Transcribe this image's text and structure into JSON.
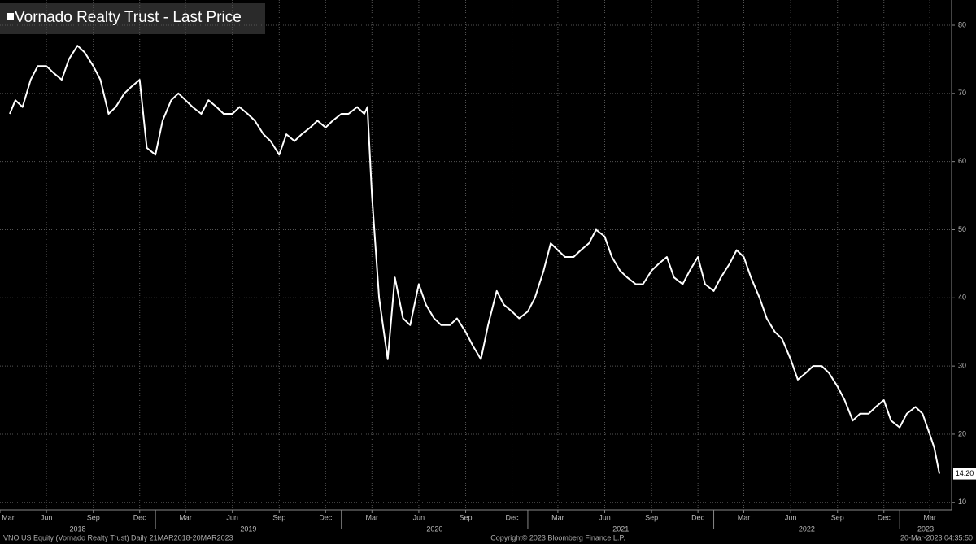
{
  "chart_data": {
    "type": "line",
    "title": "Vornado Realty Trust - Last Price",
    "xlim": [
      "2018-03-21",
      "2023-03-20"
    ],
    "ylim": [
      8.9,
      83.7
    ],
    "yticks": [
      10,
      20,
      30,
      40,
      50,
      60,
      70,
      80
    ],
    "xticks": [
      {
        "value": "2018-03-01",
        "label": "Mar"
      },
      {
        "value": "2018-06-01",
        "label": "Jun"
      },
      {
        "value": "2018-09-01",
        "label": "Sep"
      },
      {
        "value": "2018-12-01",
        "label": "Dec"
      },
      {
        "value": "2019-03-01",
        "label": "Mar"
      },
      {
        "value": "2019-06-01",
        "label": "Jun"
      },
      {
        "value": "2019-09-01",
        "label": "Sep"
      },
      {
        "value": "2019-12-01",
        "label": "Dec"
      },
      {
        "value": "2020-03-01",
        "label": "Mar"
      },
      {
        "value": "2020-06-01",
        "label": "Jun"
      },
      {
        "value": "2020-09-01",
        "label": "Sep"
      },
      {
        "value": "2020-12-01",
        "label": "Dec"
      },
      {
        "value": "2021-03-01",
        "label": "Mar"
      },
      {
        "value": "2021-06-01",
        "label": "Jun"
      },
      {
        "value": "2021-09-01",
        "label": "Sep"
      },
      {
        "value": "2021-12-01",
        "label": "Dec"
      },
      {
        "value": "2022-03-01",
        "label": "Mar"
      },
      {
        "value": "2022-06-01",
        "label": "Jun"
      },
      {
        "value": "2022-09-01",
        "label": "Sep"
      },
      {
        "value": "2022-12-01",
        "label": "Dec"
      },
      {
        "value": "2023-03-01",
        "label": "Mar"
      }
    ],
    "year_ticks": [
      2018,
      2019,
      2020,
      2021,
      2022,
      2023
    ],
    "grid": true,
    "series": [
      {
        "name": "Vornado Realty Trust - Last Price",
        "color": "#ffffff",
        "x": [
          "2018-03-21",
          "2018-04-01",
          "2018-04-15",
          "2018-05-01",
          "2018-05-15",
          "2018-06-01",
          "2018-06-15",
          "2018-07-01",
          "2018-07-15",
          "2018-08-01",
          "2018-08-15",
          "2018-09-01",
          "2018-09-15",
          "2018-10-01",
          "2018-10-15",
          "2018-11-01",
          "2018-11-15",
          "2018-12-01",
          "2018-12-15",
          "2019-01-01",
          "2019-01-15",
          "2019-02-01",
          "2019-02-15",
          "2019-03-01",
          "2019-03-15",
          "2019-04-01",
          "2019-04-15",
          "2019-05-01",
          "2019-05-15",
          "2019-06-01",
          "2019-06-15",
          "2019-07-01",
          "2019-07-15",
          "2019-08-01",
          "2019-08-15",
          "2019-09-01",
          "2019-09-15",
          "2019-10-01",
          "2019-10-15",
          "2019-11-01",
          "2019-11-15",
          "2019-12-01",
          "2019-12-15",
          "2020-01-01",
          "2020-01-15",
          "2020-02-01",
          "2020-02-15",
          "2020-02-21",
          "2020-03-01",
          "2020-03-15",
          "2020-04-01",
          "2020-04-15",
          "2020-05-01",
          "2020-05-15",
          "2020-06-01",
          "2020-06-15",
          "2020-07-01",
          "2020-07-15",
          "2020-08-01",
          "2020-08-15",
          "2020-09-01",
          "2020-09-15",
          "2020-10-01",
          "2020-10-15",
          "2020-11-01",
          "2020-11-15",
          "2020-12-01",
          "2020-12-15",
          "2021-01-01",
          "2021-01-15",
          "2021-02-01",
          "2021-02-15",
          "2021-03-01",
          "2021-03-15",
          "2021-04-01",
          "2021-04-15",
          "2021-05-01",
          "2021-05-15",
          "2021-06-01",
          "2021-06-15",
          "2021-07-01",
          "2021-07-15",
          "2021-08-01",
          "2021-08-15",
          "2021-09-01",
          "2021-09-15",
          "2021-10-01",
          "2021-10-15",
          "2021-11-01",
          "2021-11-15",
          "2021-12-01",
          "2021-12-15",
          "2022-01-01",
          "2022-01-15",
          "2022-02-01",
          "2022-02-15",
          "2022-03-01",
          "2022-03-15",
          "2022-04-01",
          "2022-04-15",
          "2022-05-01",
          "2022-05-15",
          "2022-06-01",
          "2022-06-15",
          "2022-07-01",
          "2022-07-15",
          "2022-08-01",
          "2022-08-15",
          "2022-09-01",
          "2022-09-15",
          "2022-10-01",
          "2022-10-15",
          "2022-11-01",
          "2022-11-15",
          "2022-12-01",
          "2022-12-15",
          "2023-01-01",
          "2023-01-15",
          "2023-02-01",
          "2023-02-15",
          "2023-03-01",
          "2023-03-10",
          "2023-03-20"
        ],
        "values": [
          67,
          69,
          68,
          72,
          74,
          74,
          73,
          72,
          75,
          77,
          76,
          74,
          72,
          67,
          68,
          70,
          71,
          72,
          62,
          61,
          66,
          69,
          70,
          69,
          68,
          67,
          69,
          68,
          67,
          67,
          68,
          67,
          66,
          64,
          63,
          61,
          64,
          63,
          64,
          65,
          66,
          65,
          66,
          67,
          67,
          68,
          67,
          68,
          55,
          40,
          31,
          43,
          37,
          36,
          42,
          39,
          37,
          36,
          36,
          37,
          35,
          33,
          31,
          36,
          41,
          39,
          38,
          37,
          38,
          40,
          44,
          48,
          47,
          46,
          46,
          47,
          48,
          50,
          49,
          46,
          44,
          43,
          42,
          42,
          44,
          45,
          46,
          43,
          42,
          44,
          46,
          42,
          41,
          43,
          45,
          47,
          46,
          43,
          40,
          37,
          35,
          34,
          31,
          28,
          29,
          30,
          30,
          29,
          27,
          25,
          22,
          23,
          23,
          24,
          25,
          22,
          21,
          23,
          24,
          23,
          20,
          18,
          14.2
        ]
      }
    ],
    "last_price_label": "14.20",
    "footer_left": "VNO US Equity (Vornado Realty Trust)  Daily 21MAR2018-20MAR2023",
    "footer_center": "Copyright© 2023 Bloomberg Finance L.P.",
    "footer_right": "20-Mar-2023 04:35:50"
  }
}
